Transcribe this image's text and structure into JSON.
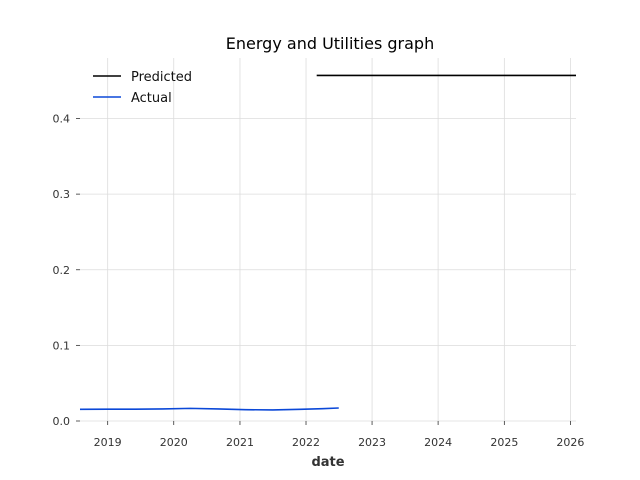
{
  "chart_data": {
    "type": "line",
    "title": "Energy and Utilities graph",
    "xlabel": "date",
    "ylabel": "",
    "xlim": [
      "2018-08-01",
      "2026-02-01"
    ],
    "ylim": [
      0,
      0.48
    ],
    "x_ticks": [
      "2019",
      "2020",
      "2021",
      "2022",
      "2023",
      "2024",
      "2025",
      "2026"
    ],
    "y_ticks": [
      "0.0",
      "0.1",
      "0.2",
      "0.3",
      "0.4"
    ],
    "grid": true,
    "legend_position": "top-left",
    "series": [
      {
        "name": "Predicted",
        "color": "#000000",
        "points": [
          {
            "x": "2022-03-01",
            "y": 0.457
          },
          {
            "x": "2026-02-01",
            "y": 0.457
          }
        ]
      },
      {
        "name": "Actual",
        "color": "#0b48d8",
        "points": [
          {
            "x": "2018-08-01",
            "y": 0.0155
          },
          {
            "x": "2019-01-01",
            "y": 0.0156
          },
          {
            "x": "2019-06-01",
            "y": 0.0156
          },
          {
            "x": "2019-11-01",
            "y": 0.0159
          },
          {
            "x": "2020-04-01",
            "y": 0.0167
          },
          {
            "x": "2020-09-01",
            "y": 0.016
          },
          {
            "x": "2021-02-01",
            "y": 0.015
          },
          {
            "x": "2021-07-01",
            "y": 0.0146
          },
          {
            "x": "2021-12-01",
            "y": 0.0155
          },
          {
            "x": "2022-04-01",
            "y": 0.0163
          },
          {
            "x": "2022-07-01",
            "y": 0.0172
          }
        ]
      }
    ]
  }
}
